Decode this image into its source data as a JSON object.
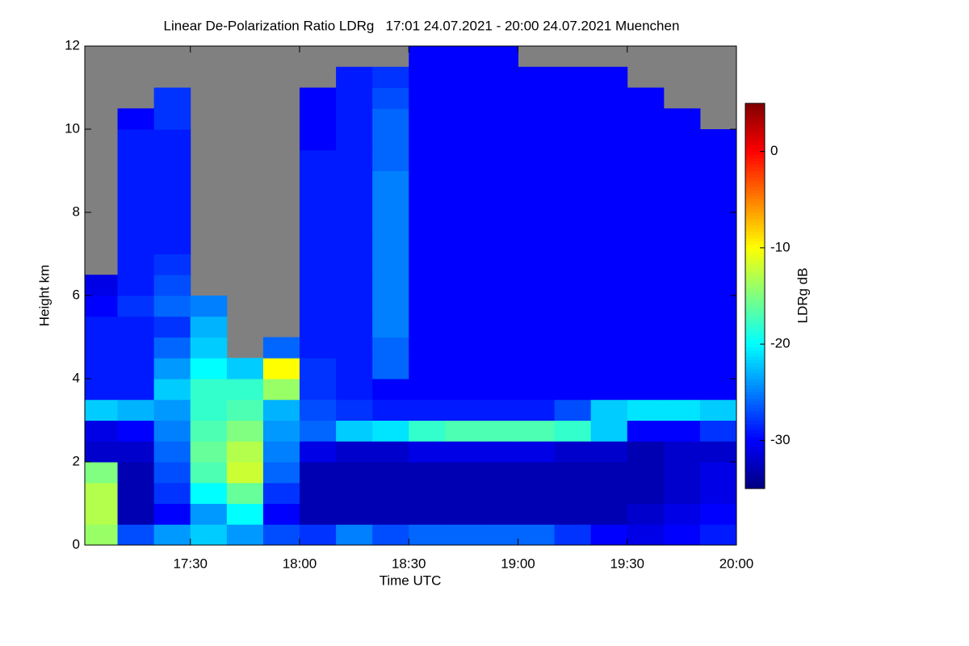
{
  "chart_data": {
    "type": "heatmap",
    "title": "Linear De-Polarization Ratio LDRg   17:01 24.07.2021 - 20:00 24.07.2021 Muenchen",
    "xlabel": "Time UTC",
    "ylabel": "Height km",
    "colorbar_label": "LDRg dB",
    "xlim": [
      1021,
      1200
    ],
    "xticks": [
      {
        "value": 1050,
        "label": "17:30"
      },
      {
        "value": 1080,
        "label": "18:00"
      },
      {
        "value": 1110,
        "label": "18:30"
      },
      {
        "value": 1140,
        "label": "19:00"
      },
      {
        "value": 1170,
        "label": "19:30"
      },
      {
        "value": 1200,
        "label": "20:00"
      }
    ],
    "ylim": [
      0,
      12
    ],
    "yticks": [
      0,
      2,
      4,
      6,
      8,
      10,
      12
    ],
    "clim": [
      -35,
      5
    ],
    "cticks": [
      0,
      -10,
      -20,
      -30
    ],
    "colormap": "jet",
    "missing_color": "#808080",
    "x_bins": [
      1021,
      1030,
      1040,
      1050,
      1060,
      1070,
      1080,
      1090,
      1100,
      1110,
      1120,
      1130,
      1140,
      1150,
      1160,
      1170,
      1180,
      1190,
      1200
    ],
    "y_bins": [
      0,
      0.5,
      1,
      1.5,
      2,
      2.5,
      3,
      3.5,
      4,
      4.5,
      5,
      5.5,
      6,
      6.5,
      7,
      7.5,
      8,
      8.5,
      9,
      9.5,
      10,
      10.5,
      11,
      11.5,
      12
    ],
    "values": [
      [
        -14,
        -27,
        -24,
        -22,
        -24,
        -27,
        -28,
        -25,
        -27,
        -26,
        -26,
        -26,
        -26,
        -28,
        -30,
        -31,
        -30,
        -29
      ],
      [
        -13,
        -33,
        -30,
        -24,
        -20,
        -30,
        -33,
        -33,
        -33,
        -33,
        -33,
        -33,
        -33,
        -33,
        -33,
        -32,
        -31,
        -30
      ],
      [
        -13,
        -33,
        -28,
        -20,
        -16,
        -28,
        -33,
        -33,
        -33,
        -33,
        -33,
        -33,
        -33,
        -33,
        -33,
        -33,
        -32,
        -31
      ],
      [
        -15,
        -33,
        -27,
        -17,
        -12,
        -26,
        -33,
        -33,
        -33,
        -33,
        -33,
        -33,
        -33,
        -33,
        -33,
        -33,
        -32,
        -31
      ],
      [
        -32,
        -32,
        -26,
        -16,
        -13,
        -25,
        -31,
        -32,
        -32,
        -31,
        -31,
        -31,
        -31,
        -32,
        -32,
        -33,
        -32,
        -32
      ],
      [
        -31,
        -30,
        -25,
        -17,
        -15,
        -24,
        -26,
        -22,
        -21,
        -18,
        -17,
        -17,
        -17,
        -18,
        -22,
        -30,
        -30,
        -28
      ],
      [
        -22,
        -23,
        -24,
        -18,
        -17,
        -23,
        -27,
        -28,
        -29,
        -29,
        -29,
        -29,
        -29,
        -27,
        -22,
        -21,
        -21,
        -22
      ],
      [
        -29,
        -29,
        -22,
        -18,
        -18,
        -14,
        -28,
        -29,
        -30,
        -30,
        -30,
        -30,
        -30,
        -30,
        -30,
        -30,
        -30,
        -30
      ],
      [
        -29,
        -29,
        -24,
        -20,
        -22,
        -10,
        -28,
        -29,
        -26,
        -30,
        -30,
        -30,
        -30,
        -30,
        -30,
        -30,
        -30,
        -30
      ],
      [
        -29,
        -29,
        -26,
        -22,
        null,
        -26,
        -29,
        -29,
        -26,
        -30,
        -30,
        -30,
        -30,
        -30,
        -30,
        -30,
        -30,
        -30
      ],
      [
        -29,
        -29,
        -28,
        -23,
        null,
        null,
        -29,
        -29,
        -25,
        -30,
        -30,
        -30,
        -30,
        -30,
        -30,
        -30,
        -30,
        -30
      ],
      [
        -30,
        -28,
        -26,
        -25,
        null,
        null,
        -29,
        -29,
        -25,
        -30,
        -30,
        -30,
        -30,
        -30,
        -30,
        -30,
        -30,
        -30
      ],
      [
        -31,
        -29,
        -27,
        null,
        null,
        null,
        -29,
        -29,
        -25,
        -30,
        -30,
        -30,
        -30,
        -30,
        -30,
        -30,
        -30,
        -30
      ],
      [
        null,
        -29,
        -28,
        null,
        null,
        null,
        -29,
        -29,
        -25,
        -30,
        -30,
        -30,
        -30,
        -30,
        -30,
        -30,
        -30,
        -30
      ],
      [
        null,
        -29,
        -29,
        null,
        null,
        null,
        -29,
        -29,
        -25,
        -30,
        -30,
        -30,
        -30,
        -30,
        -30,
        -30,
        -30,
        -30
      ],
      [
        null,
        -29,
        -29,
        null,
        null,
        null,
        -29,
        -29,
        -25,
        -30,
        -30,
        -30,
        -30,
        -30,
        -30,
        -30,
        -30,
        -30
      ],
      [
        null,
        -29,
        -29,
        null,
        null,
        null,
        -29,
        -29,
        -25,
        -30,
        -30,
        -30,
        -30,
        -30,
        -30,
        -30,
        -30,
        -30
      ],
      [
        null,
        -29,
        -29,
        null,
        null,
        null,
        -29,
        -29,
        -25,
        -30,
        -30,
        -30,
        -30,
        -30,
        -30,
        -30,
        -30,
        -30
      ],
      [
        null,
        -29,
        -29,
        null,
        null,
        null,
        -29,
        -29,
        -26,
        -30,
        -30,
        -30,
        -30,
        -30,
        -30,
        -30,
        -30,
        -30
      ],
      [
        null,
        -29,
        -29,
        null,
        null,
        null,
        -30,
        -29,
        -26,
        -30,
        -30,
        -30,
        -30,
        -30,
        -30,
        -30,
        -30,
        -30
      ],
      [
        null,
        -30,
        -28,
        null,
        null,
        null,
        -30,
        -29,
        -26,
        -30,
        -30,
        -30,
        -30,
        -30,
        -30,
        -30,
        -30,
        null
      ],
      [
        null,
        null,
        -28,
        null,
        null,
        null,
        -30,
        -29,
        -27,
        -30,
        -30,
        -30,
        -30,
        -30,
        -30,
        -30,
        null,
        null
      ],
      [
        null,
        null,
        null,
        null,
        null,
        null,
        null,
        -29,
        -28,
        -30,
        -30,
        -30,
        -30,
        -30,
        -30,
        null,
        null,
        null
      ],
      [
        null,
        null,
        null,
        null,
        null,
        null,
        null,
        null,
        null,
        -30,
        -30,
        -30,
        null,
        null,
        null,
        null,
        null,
        null
      ]
    ]
  }
}
